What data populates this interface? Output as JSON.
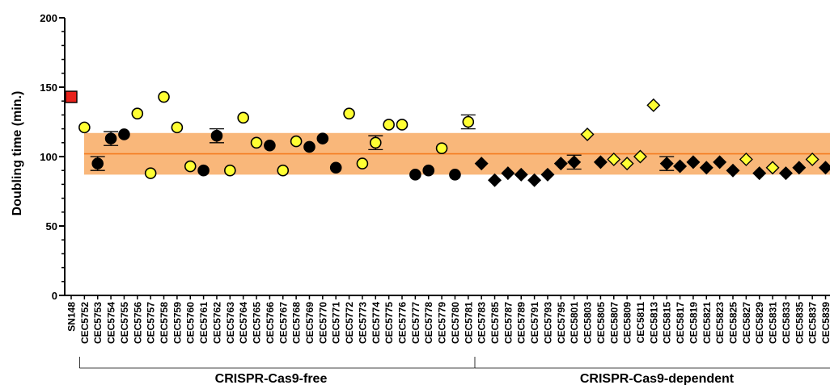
{
  "chart_data": {
    "type": "scatter",
    "ylabel": "Doubling time (min.)",
    "ylim": [
      0,
      200
    ],
    "yticks": [
      0,
      50,
      100,
      150,
      200
    ],
    "grid": false,
    "band": {
      "mean": 102,
      "low": 87,
      "high": 117,
      "fill": "#f9b77a",
      "line": "#f47c1f"
    },
    "groups": [
      {
        "label": "CRISPR-Cas9-free",
        "from": "CEC5752",
        "to": "CEC5781"
      },
      {
        "label": "CRISPR-Cas9-dependent",
        "from": "CEC5783",
        "to": "CEC5839"
      }
    ],
    "categories": [
      "SN148",
      "CEC5752",
      "CEC5753",
      "CEC5754",
      "CEC5755",
      "CEC5756",
      "CEC5757",
      "CEC5758",
      "CEC5759",
      "CEC5760",
      "CEC5761",
      "CEC5762",
      "CEC5763",
      "CEC5764",
      "CEC5765",
      "CEC5766",
      "CEC5767",
      "CEC5768",
      "CEC5769",
      "CEC5770",
      "CEC5771",
      "CEC5772",
      "CEC5773",
      "CEC5774",
      "CEC5775",
      "CEC5776",
      "CEC5777",
      "CEC5778",
      "CEC5779",
      "CEC5780",
      "CEC5781",
      "CEC5783",
      "CEC5785",
      "CEC5787",
      "CEC5789",
      "CEC5791",
      "CEC5793",
      "CEC5795",
      "CEC5801",
      "CEC5803",
      "CEC5805",
      "CEC5807",
      "CEC5809",
      "CEC5811",
      "CEC5813",
      "CEC5815",
      "CEC5817",
      "CEC5819",
      "CEC5821",
      "CEC5823",
      "CEC5825",
      "CEC5827",
      "CEC5829",
      "CEC5831",
      "CEC5833",
      "CEC5835",
      "CEC5837",
      "CEC5839"
    ],
    "points": [
      {
        "y": 143,
        "marker": "square",
        "color": "#e8221b"
      },
      {
        "y": 121,
        "marker": "circle",
        "color": "#ffff33"
      },
      {
        "y": 95,
        "err": 5,
        "marker": "circle",
        "color": "#000000"
      },
      {
        "y": 113,
        "err": 5,
        "marker": "circle",
        "color": "#000000"
      },
      {
        "y": 116,
        "marker": "circle",
        "color": "#000000"
      },
      {
        "y": 131,
        "marker": "circle",
        "color": "#ffff33"
      },
      {
        "y": 88,
        "marker": "circle",
        "color": "#ffff33"
      },
      {
        "y": 143,
        "marker": "circle",
        "color": "#ffff33"
      },
      {
        "y": 121,
        "marker": "circle",
        "color": "#ffff33"
      },
      {
        "y": 93,
        "marker": "circle",
        "color": "#ffff33"
      },
      {
        "y": 90,
        "marker": "circle",
        "color": "#000000"
      },
      {
        "y": 115,
        "err": 5,
        "marker": "circle",
        "color": "#000000"
      },
      {
        "y": 90,
        "marker": "circle",
        "color": "#ffff33"
      },
      {
        "y": 128,
        "marker": "circle",
        "color": "#ffff33"
      },
      {
        "y": 110,
        "marker": "circle",
        "color": "#ffff33"
      },
      {
        "y": 108,
        "marker": "circle",
        "color": "#000000"
      },
      {
        "y": 90,
        "marker": "circle",
        "color": "#ffff33"
      },
      {
        "y": 111,
        "marker": "circle",
        "color": "#ffff33"
      },
      {
        "y": 107,
        "marker": "circle",
        "color": "#000000"
      },
      {
        "y": 113,
        "marker": "circle",
        "color": "#000000"
      },
      {
        "y": 92,
        "marker": "circle",
        "color": "#000000"
      },
      {
        "y": 131,
        "marker": "circle",
        "color": "#ffff33"
      },
      {
        "y": 95,
        "marker": "circle",
        "color": "#ffff33"
      },
      {
        "y": 110,
        "err": 5,
        "marker": "circle",
        "color": "#ffff33"
      },
      {
        "y": 123,
        "marker": "circle",
        "color": "#ffff33"
      },
      {
        "y": 123,
        "marker": "circle",
        "color": "#ffff33"
      },
      {
        "y": 87,
        "marker": "circle",
        "color": "#000000"
      },
      {
        "y": 90,
        "marker": "circle",
        "color": "#000000"
      },
      {
        "y": 106,
        "marker": "circle",
        "color": "#ffff33"
      },
      {
        "y": 87,
        "marker": "circle",
        "color": "#000000"
      },
      {
        "y": 125,
        "err": 5,
        "marker": "circle",
        "color": "#ffff33"
      },
      {
        "y": 95,
        "marker": "diamond",
        "color": "#000000"
      },
      {
        "y": 83,
        "marker": "diamond",
        "color": "#000000"
      },
      {
        "y": 88,
        "marker": "diamond",
        "color": "#000000"
      },
      {
        "y": 87,
        "marker": "diamond",
        "color": "#000000"
      },
      {
        "y": 83,
        "marker": "diamond",
        "color": "#000000"
      },
      {
        "y": 87,
        "marker": "diamond",
        "color": "#000000"
      },
      {
        "y": 95,
        "marker": "diamond",
        "color": "#000000"
      },
      {
        "y": 96,
        "err": 5,
        "marker": "diamond",
        "color": "#000000"
      },
      {
        "y": 116,
        "marker": "diamond",
        "color": "#ffff33"
      },
      {
        "y": 96,
        "marker": "diamond",
        "color": "#000000"
      },
      {
        "y": 98,
        "marker": "diamond",
        "color": "#ffff33"
      },
      {
        "y": 95,
        "marker": "diamond",
        "color": "#ffff33"
      },
      {
        "y": 100,
        "marker": "diamond",
        "color": "#ffff33"
      },
      {
        "y": 137,
        "marker": "diamond",
        "color": "#ffff33"
      },
      {
        "y": 95,
        "err": 5,
        "marker": "diamond",
        "color": "#000000"
      },
      {
        "y": 93,
        "marker": "diamond",
        "color": "#000000"
      },
      {
        "y": 96,
        "marker": "diamond",
        "color": "#000000"
      },
      {
        "y": 92,
        "marker": "diamond",
        "color": "#000000"
      },
      {
        "y": 96,
        "marker": "diamond",
        "color": "#000000"
      },
      {
        "y": 90,
        "marker": "diamond",
        "color": "#000000"
      },
      {
        "y": 98,
        "marker": "diamond",
        "color": "#ffff33"
      },
      {
        "y": 88,
        "marker": "diamond",
        "color": "#000000"
      },
      {
        "y": 92,
        "marker": "diamond",
        "color": "#ffff33"
      },
      {
        "y": 88,
        "marker": "diamond",
        "color": "#000000"
      },
      {
        "y": 92,
        "marker": "diamond",
        "color": "#000000"
      },
      {
        "y": 98,
        "marker": "diamond",
        "color": "#ffff33"
      },
      {
        "y": 92,
        "marker": "diamond",
        "color": "#000000"
      }
    ]
  }
}
